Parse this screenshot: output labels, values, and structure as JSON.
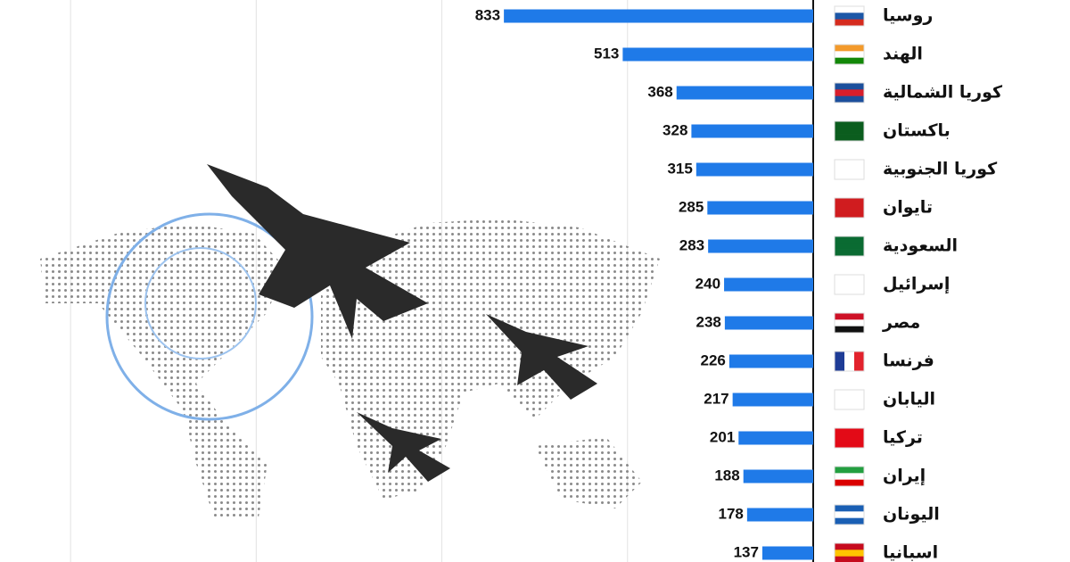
{
  "chart_data": {
    "type": "bar",
    "orientation": "horizontal",
    "categories": [
      "روسيا",
      "الهند",
      "كوريا الشمالية",
      "باكستان",
      "كوريا الجنوبية",
      "تايوان",
      "السعودية",
      "إسرائيل",
      "مصر",
      "فرنسا",
      "اليابان",
      "تركيا",
      "إيران",
      "اليونان",
      "اسبانيا"
    ],
    "values": [
      833,
      513,
      368,
      328,
      315,
      285,
      283,
      240,
      238,
      226,
      217,
      201,
      188,
      178,
      137
    ],
    "color": "#1f7ae8",
    "xlim": [
      0,
      2190
    ],
    "xticks": [
      0,
      500,
      1000,
      1500,
      2000
    ],
    "grid": true
  }
}
